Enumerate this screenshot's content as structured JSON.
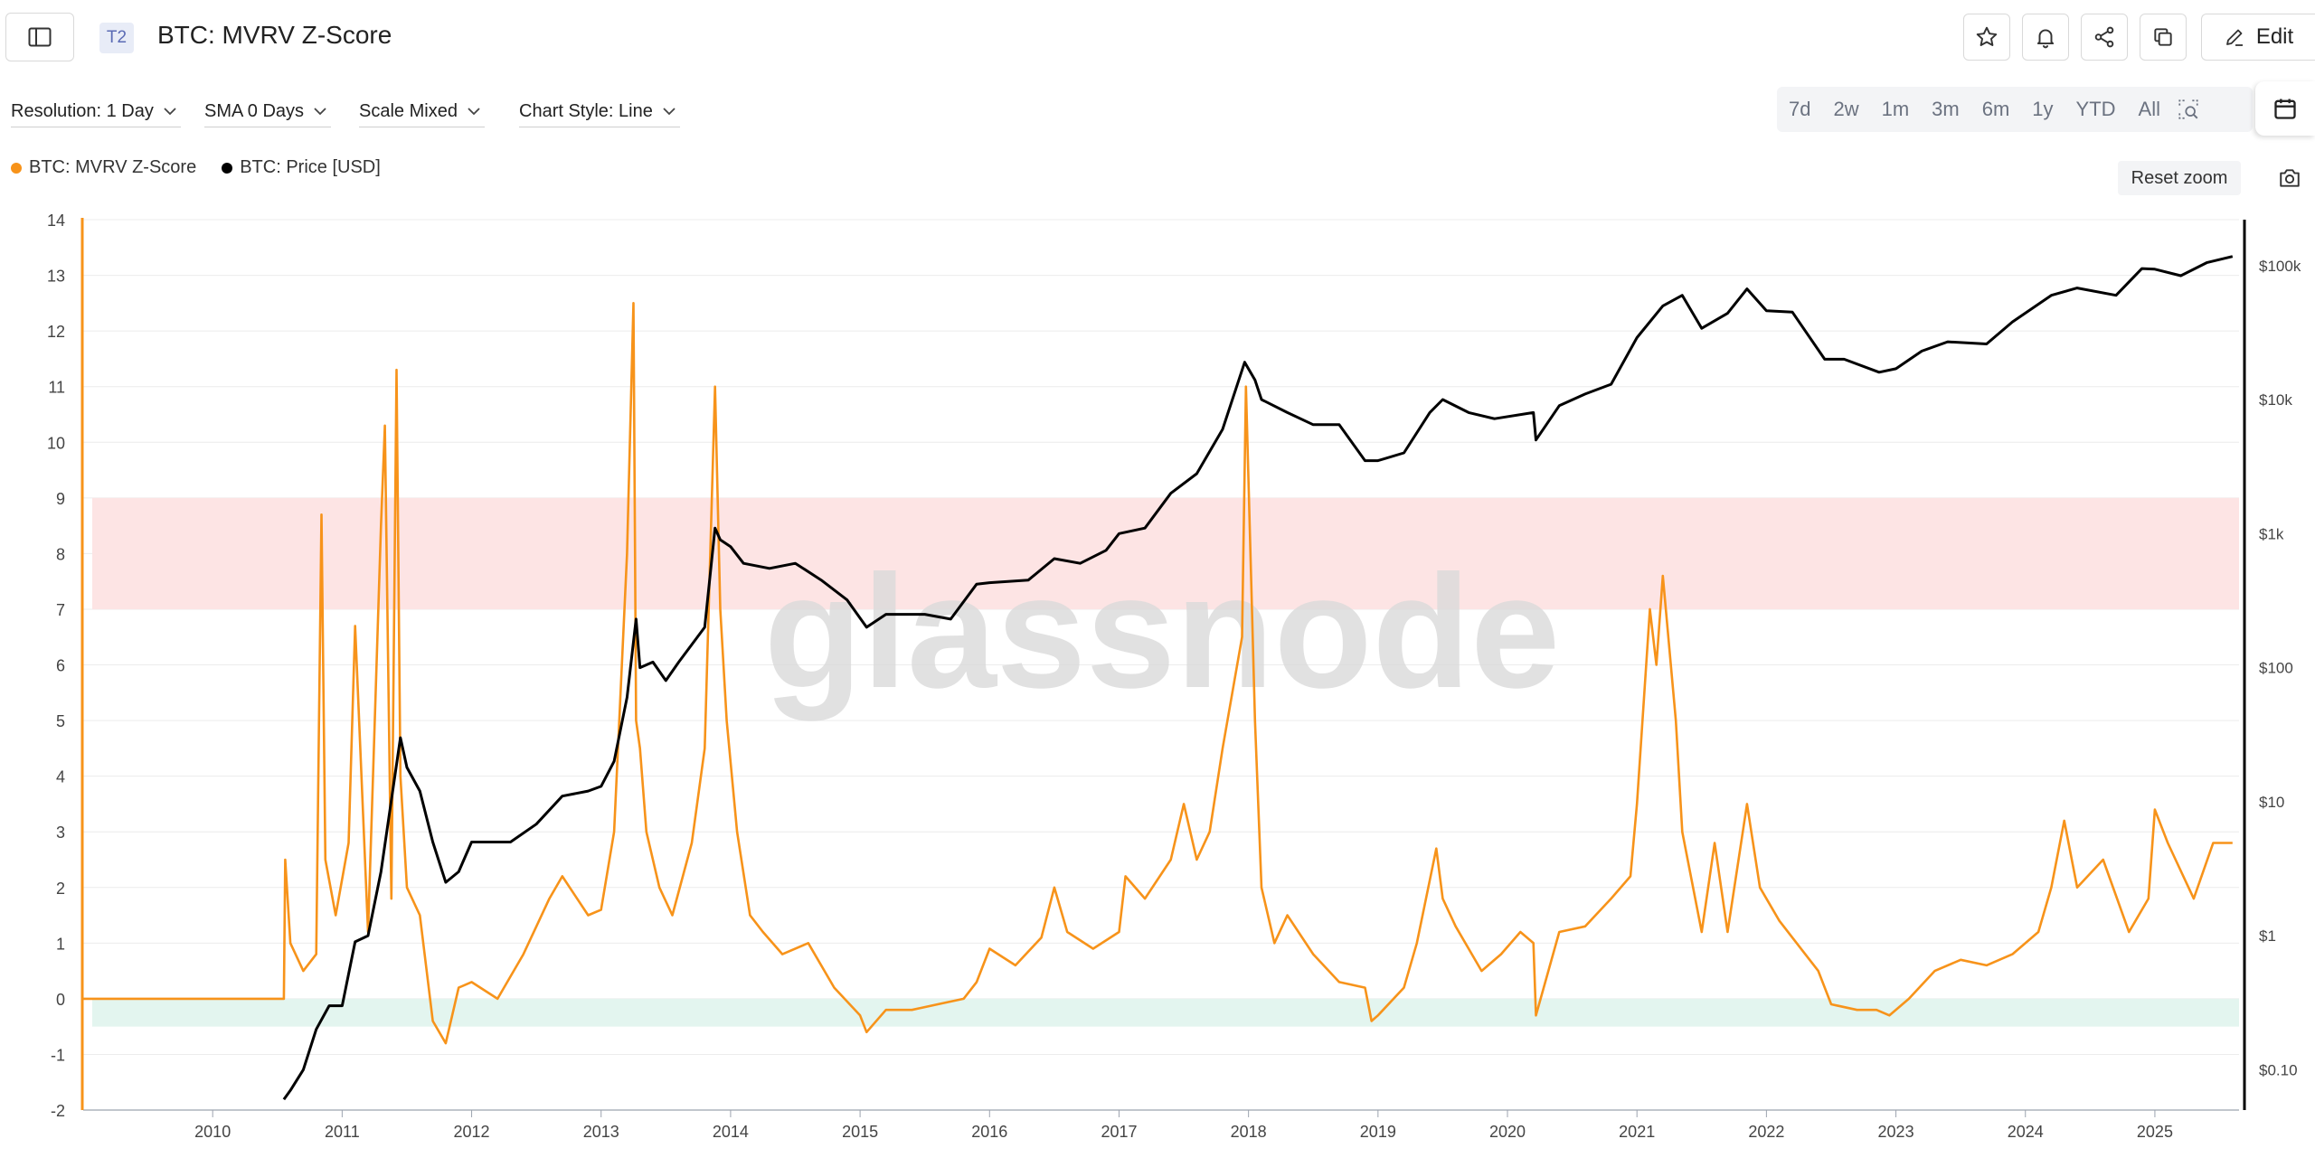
{
  "header": {
    "badge": "T2",
    "title": "BTC: MVRV Z-Score",
    "edit_label": "Edit"
  },
  "icons": {
    "sidebar": "sidebar-toggle-icon",
    "favorite": "star-icon",
    "alert": "bell-icon",
    "share": "share-icon",
    "duplicate": "copy-icon",
    "edit": "pencil-icon",
    "calendar": "calendar-icon",
    "camera": "camera-icon",
    "zoom": "zoom-select-icon",
    "dropdown": "chevron-down-icon"
  },
  "controls": {
    "resolution": "Resolution: 1 Day",
    "sma": "SMA 0 Days",
    "scale": "Scale Mixed",
    "chart_style": "Chart Style: Line"
  },
  "ranges": [
    "7d",
    "2w",
    "1m",
    "3m",
    "6m",
    "1y",
    "YTD",
    "All"
  ],
  "legend": [
    {
      "label": "BTC: MVRV Z-Score",
      "color": "#f7931a"
    },
    {
      "label": "BTC: Price [USD]",
      "color": "#000000"
    }
  ],
  "reset_zoom": "Reset zoom",
  "watermark": "glassnode",
  "colors": {
    "zscore": "#f7931a",
    "price": "#000000",
    "overvalued_band": "#fde4e4",
    "undervalued_band": "#e3f5ef"
  },
  "chart_data": {
    "type": "line",
    "title": "BTC: MVRV Z-Score",
    "grid": true,
    "legend_position": "top-left",
    "x_ticks": [
      "2010",
      "2011",
      "2012",
      "2013",
      "2014",
      "2015",
      "2016",
      "2017",
      "2018",
      "2019",
      "2020",
      "2021",
      "2022",
      "2023",
      "2024",
      "2025"
    ],
    "y_left": {
      "ticks": [
        14,
        13,
        12,
        11,
        10,
        9,
        8,
        7,
        6,
        5,
        4,
        3,
        2,
        1,
        0,
        -1,
        -2
      ],
      "range": [
        -2,
        14
      ]
    },
    "y_right": {
      "scale": "log",
      "ticks": [
        "$100k",
        "$10k",
        "$1k",
        "$100",
        "$10",
        "$1",
        "$0.10"
      ],
      "range": [
        0.05,
        220000
      ]
    },
    "bands": [
      {
        "name": "overvalued",
        "y_from": 7,
        "y_to": 9
      },
      {
        "name": "undervalued",
        "y_from": -0.5,
        "y_to": 0
      }
    ],
    "series": [
      {
        "name": "BTC: MVRV Z-Score",
        "axis": "left",
        "x": [
          2009.0,
          2010.55,
          2010.56,
          2010.6,
          2010.7,
          2010.8,
          2010.84,
          2010.87,
          2010.95,
          2011.05,
          2011.1,
          2011.2,
          2011.3,
          2011.33,
          2011.38,
          2011.42,
          2011.45,
          2011.5,
          2011.6,
          2011.7,
          2011.8,
          2011.9,
          2012.0,
          2012.2,
          2012.4,
          2012.6,
          2012.7,
          2012.9,
          2013.0,
          2013.1,
          2013.2,
          2013.25,
          2013.27,
          2013.3,
          2013.35,
          2013.45,
          2013.55,
          2013.7,
          2013.8,
          2013.88,
          2013.92,
          2013.97,
          2014.05,
          2014.15,
          2014.25,
          2014.4,
          2014.6,
          2014.8,
          2015.0,
          2015.05,
          2015.2,
          2015.4,
          2015.6,
          2015.8,
          2015.9,
          2016.0,
          2016.2,
          2016.4,
          2016.5,
          2016.6,
          2016.8,
          2017.0,
          2017.05,
          2017.2,
          2017.4,
          2017.5,
          2017.6,
          2017.7,
          2017.8,
          2017.95,
          2017.98,
          2018.05,
          2018.1,
          2018.2,
          2018.3,
          2018.5,
          2018.7,
          2018.9,
          2018.95,
          2019.0,
          2019.2,
          2019.3,
          2019.45,
          2019.5,
          2019.6,
          2019.8,
          2019.95,
          2020.1,
          2020.2,
          2020.22,
          2020.4,
          2020.6,
          2020.8,
          2020.95,
          2021.0,
          2021.1,
          2021.15,
          2021.2,
          2021.3,
          2021.35,
          2021.5,
          2021.6,
          2021.7,
          2021.85,
          2021.95,
          2022.1,
          2022.3,
          2022.4,
          2022.5,
          2022.7,
          2022.85,
          2022.95,
          2023.1,
          2023.3,
          2023.5,
          2023.7,
          2023.9,
          2024.1,
          2024.2,
          2024.3,
          2024.4,
          2024.6,
          2024.8,
          2024.95,
          2025.0,
          2025.1,
          2025.3,
          2025.45,
          2025.6
        ],
        "values": [
          0.0,
          0.0,
          2.5,
          1.0,
          0.5,
          0.8,
          8.7,
          2.5,
          1.5,
          2.8,
          6.7,
          1.2,
          8.5,
          10.3,
          1.8,
          11.3,
          4.0,
          2.0,
          1.5,
          -0.4,
          -0.8,
          0.2,
          0.3,
          0.0,
          0.8,
          1.8,
          2.2,
          1.5,
          1.6,
          3.0,
          8.0,
          12.5,
          5.0,
          4.5,
          3.0,
          2.0,
          1.5,
          2.8,
          4.5,
          11.0,
          7.0,
          5.0,
          3.0,
          1.5,
          1.2,
          0.8,
          1.0,
          0.2,
          -0.3,
          -0.6,
          -0.2,
          -0.2,
          -0.1,
          0.0,
          0.3,
          0.9,
          0.6,
          1.1,
          2.0,
          1.2,
          0.9,
          1.2,
          2.2,
          1.8,
          2.5,
          3.5,
          2.5,
          3.0,
          4.5,
          6.5,
          11.0,
          5.0,
          2.0,
          1.0,
          1.5,
          0.8,
          0.3,
          0.2,
          -0.4,
          -0.3,
          0.2,
          1.0,
          2.7,
          1.8,
          1.3,
          0.5,
          0.8,
          1.2,
          1.0,
          -0.3,
          1.2,
          1.3,
          1.8,
          2.2,
          3.5,
          7.0,
          6.0,
          7.6,
          5.0,
          3.0,
          1.2,
          2.8,
          1.2,
          3.5,
          2.0,
          1.4,
          0.8,
          0.5,
          -0.1,
          -0.2,
          -0.2,
          -0.3,
          0.0,
          0.5,
          0.7,
          0.6,
          0.8,
          1.2,
          2.0,
          3.2,
          2.0,
          2.5,
          1.2,
          1.8,
          3.4,
          2.8,
          1.8,
          2.8,
          2.8
        ]
      },
      {
        "name": "BTC: Price [USD]",
        "axis": "right",
        "x": [
          2010.55,
          2010.6,
          2010.7,
          2010.8,
          2010.9,
          2011.0,
          2011.1,
          2011.2,
          2011.3,
          2011.45,
          2011.5,
          2011.6,
          2011.7,
          2011.8,
          2011.9,
          2012.0,
          2012.1,
          2012.3,
          2012.5,
          2012.7,
          2012.9,
          2013.0,
          2013.1,
          2013.2,
          2013.27,
          2013.3,
          2013.4,
          2013.5,
          2013.6,
          2013.8,
          2013.88,
          2013.92,
          2014.0,
          2014.1,
          2014.3,
          2014.5,
          2014.7,
          2014.9,
          2015.05,
          2015.2,
          2015.5,
          2015.7,
          2015.9,
          2016.0,
          2016.3,
          2016.5,
          2016.7,
          2016.9,
          2017.0,
          2017.2,
          2017.4,
          2017.6,
          2017.8,
          2017.97,
          2018.05,
          2018.1,
          2018.3,
          2018.5,
          2018.7,
          2018.9,
          2019.0,
          2019.2,
          2019.4,
          2019.5,
          2019.7,
          2019.9,
          2020.2,
          2020.22,
          2020.4,
          2020.6,
          2020.8,
          2021.0,
          2021.2,
          2021.35,
          2021.5,
          2021.7,
          2021.85,
          2022.0,
          2022.2,
          2022.45,
          2022.6,
          2022.87,
          2023.0,
          2023.2,
          2023.4,
          2023.7,
          2023.9,
          2024.2,
          2024.4,
          2024.7,
          2024.9,
          2025.0,
          2025.2,
          2025.4,
          2025.6
        ],
        "values": [
          0.06,
          0.07,
          0.1,
          0.2,
          0.3,
          0.3,
          0.9,
          1.0,
          3.0,
          30,
          18,
          12,
          5,
          2.5,
          3.0,
          5.0,
          5.0,
          5.0,
          6.8,
          11,
          12,
          13,
          20,
          60,
          230,
          100,
          110,
          80,
          110,
          200,
          1100,
          900,
          800,
          600,
          550,
          600,
          450,
          320,
          200,
          250,
          250,
          230,
          420,
          430,
          450,
          650,
          600,
          750,
          1000,
          1100,
          2000,
          2800,
          6000,
          19000,
          14000,
          10000,
          8000,
          6500,
          6500,
          3500,
          3500,
          4000,
          8000,
          10000,
          8000,
          7200,
          8000,
          5000,
          9000,
          11000,
          13000,
          29000,
          50000,
          60000,
          34000,
          44000,
          67000,
          46000,
          45000,
          20000,
          20000,
          16000,
          17000,
          23000,
          27000,
          26000,
          38000,
          60000,
          68000,
          60000,
          95000,
          94000,
          84000,
          105000,
          117000
        ]
      }
    ]
  }
}
